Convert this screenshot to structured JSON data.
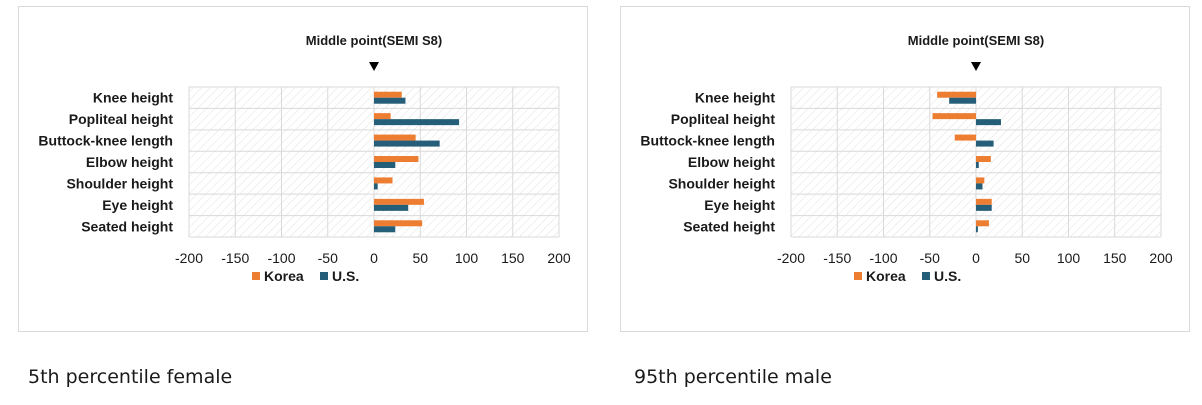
{
  "colors": {
    "korea": "#ED7D31",
    "us": "#255E79",
    "grid": "#d9d9d9",
    "hatch": "#e2e2e2",
    "text": "#1a1a1a"
  },
  "chart_data": [
    {
      "type": "bar",
      "orientation": "horizontal",
      "title": "Middle point(SEMI S8)",
      "marker_icon": "down-triangle-icon",
      "categories": [
        "Knee height",
        "Popliteal height",
        "Buttock-knee length",
        "Elbow height",
        "Shoulder height",
        "Eye height",
        "Seated height"
      ],
      "series": [
        {
          "name": "Korea",
          "color": "#ED7D31",
          "values": [
            30,
            18,
            45,
            48,
            20,
            54,
            52
          ]
        },
        {
          "name": "U.S.",
          "color": "#255E79",
          "values": [
            34,
            92,
            71,
            23,
            4,
            37,
            23
          ]
        }
      ],
      "xlim": [
        -200,
        200
      ],
      "xticks": [
        "-200",
        "-150",
        "-100",
        "-50",
        "0",
        "50",
        "100",
        "150",
        "200"
      ],
      "grid": true,
      "legend": "bottom",
      "caption": "5th percentile female"
    },
    {
      "type": "bar",
      "orientation": "horizontal",
      "title": "Middle point(SEMI S8)",
      "marker_icon": "down-triangle-icon",
      "categories": [
        "Knee height",
        "Popliteal height",
        "Buttock-knee length",
        "Elbow height",
        "Shoulder height",
        "Eye height",
        "Seated height"
      ],
      "series": [
        {
          "name": "Korea",
          "color": "#ED7D31",
          "values": [
            -42,
            -47,
            -23,
            16,
            9,
            17,
            14
          ]
        },
        {
          "name": "U.S.",
          "color": "#255E79",
          "values": [
            -29,
            27,
            19,
            3,
            7,
            17,
            2
          ]
        }
      ],
      "xlim": [
        -200,
        200
      ],
      "xticks": [
        "-200",
        "-150",
        "-100",
        "-50",
        "0",
        "50",
        "100",
        "150",
        "200"
      ],
      "grid": true,
      "legend": "bottom",
      "caption": "95th percentile male"
    }
  ]
}
